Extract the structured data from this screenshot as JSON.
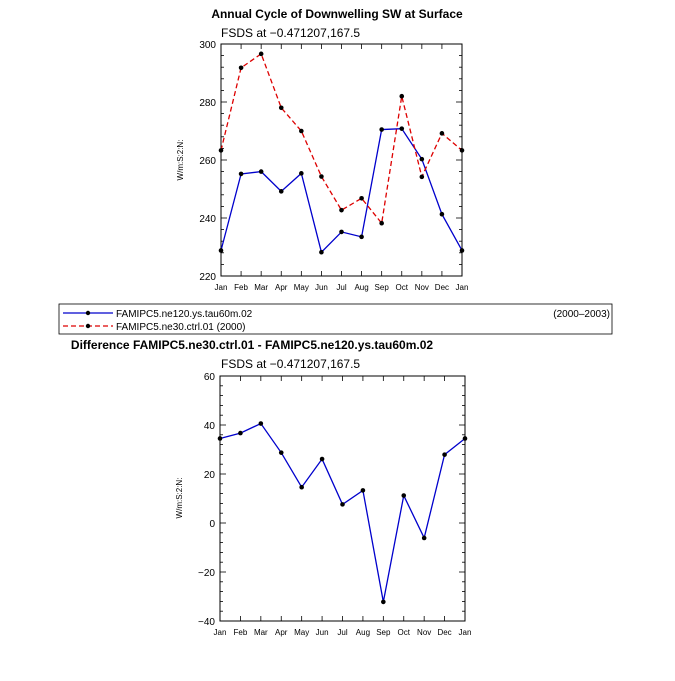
{
  "chart_data": [
    {
      "type": "line",
      "title": "Annual Cycle of Downwelling SW at Surface",
      "subtitle": "FSDS at −0.471207,167.5",
      "ylabel": "W/m:S:2:N:",
      "ylim": [
        220,
        300
      ],
      "yticks": [
        220,
        240,
        260,
        280,
        300
      ],
      "categories": [
        "Jan",
        "Feb",
        "Mar",
        "Apr",
        "May",
        "Jun",
        "Jul",
        "Aug",
        "Sep",
        "Oct",
        "Nov",
        "Dec",
        "Jan"
      ],
      "series": [
        {
          "name": "FAMIPC5.ne120.ys.tau60m.02",
          "period": "(2000–2003)",
          "color": "#0000cc",
          "dash": "solid",
          "values": [
            228.8,
            255.2,
            256.0,
            249.2,
            255.4,
            228.2,
            235.2,
            233.5,
            270.5,
            270.8,
            260.3,
            241.3,
            228.8
          ]
        },
        {
          "name": "FAMIPC5.ne30.ctrl.01 (2000)",
          "color": "#dd0000",
          "dash": "dashed",
          "values": [
            263.3,
            291.8,
            296.6,
            278.0,
            270.0,
            254.3,
            242.7,
            246.8,
            238.2,
            282.0,
            254.2,
            269.2,
            263.3
          ]
        }
      ]
    },
    {
      "type": "line",
      "title": "Difference FAMIPC5.ne30.ctrl.01 - FAMIPC5.ne120.ys.tau60m.02",
      "subtitle": "FSDS at −0.471207,167.5",
      "ylabel": "W/m:S:2:N:",
      "ylim": [
        -40,
        60
      ],
      "yticks": [
        -40,
        -20,
        0,
        20,
        40,
        60
      ],
      "categories": [
        "Jan",
        "Feb",
        "Mar",
        "Apr",
        "May",
        "Jun",
        "Jul",
        "Aug",
        "Sep",
        "Oct",
        "Nov",
        "Dec",
        "Jan"
      ],
      "series": [
        {
          "color": "#0000cc",
          "dash": "solid",
          "values": [
            34.5,
            36.7,
            40.6,
            28.7,
            14.6,
            26.1,
            7.6,
            13.3,
            -32.2,
            11.2,
            -6.1,
            27.9,
            34.5
          ]
        }
      ]
    }
  ]
}
